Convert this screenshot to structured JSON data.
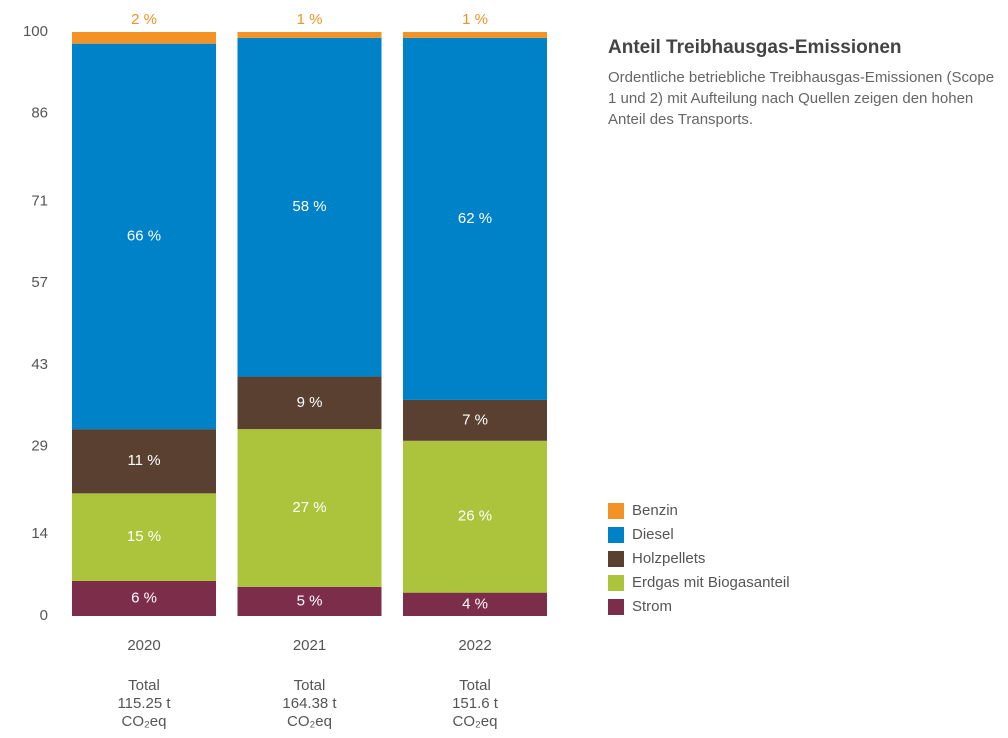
{
  "chart_data": {
    "type": "stacked_bar",
    "title": "Anteil Treibhausgas-Emissionen",
    "subtitle": "Ordentliche betriebliche Treibhausgas-Emissionen (Scope 1 und 2) mit Aufteilung nach Quellen zeigen den hohen Anteil des Transports.",
    "categories": [
      "2020",
      "2021",
      "2022"
    ],
    "totals": [
      [
        "Total",
        "115.25 t",
        "CO₂eq"
      ],
      [
        "Total",
        "164.38 t",
        "CO₂eq"
      ],
      [
        "Total",
        "151.6 t",
        "CO₂eq"
      ]
    ],
    "ylim": [
      0,
      100
    ],
    "yticks": [
      0,
      14,
      29,
      43,
      57,
      71,
      86,
      100
    ],
    "series": [
      {
        "name": "Strom",
        "color": "#7b2d4a",
        "values": [
          6,
          5,
          4
        ],
        "value_labels": [
          "6 %",
          "5 %",
          "4 %"
        ]
      },
      {
        "name": "Erdgas mit Biogasanteil",
        "color": "#acc43c",
        "values": [
          15,
          27,
          26
        ],
        "value_labels": [
          "15 %",
          "27 %",
          "26 %"
        ]
      },
      {
        "name": "Holzpellets",
        "color": "#5a4030",
        "values": [
          11,
          9,
          7
        ],
        "value_labels": [
          "11 %",
          "9 %",
          "7 %"
        ]
      },
      {
        "name": "Diesel",
        "color": "#0082c8",
        "values": [
          66,
          58,
          62
        ],
        "value_labels": [
          "66 %",
          "58 %",
          "62 %"
        ]
      },
      {
        "name": "Benzin",
        "color": "#f39325",
        "values": [
          2,
          1,
          1
        ],
        "value_labels": [
          "2 %",
          "1 %",
          "1 %"
        ]
      }
    ]
  }
}
